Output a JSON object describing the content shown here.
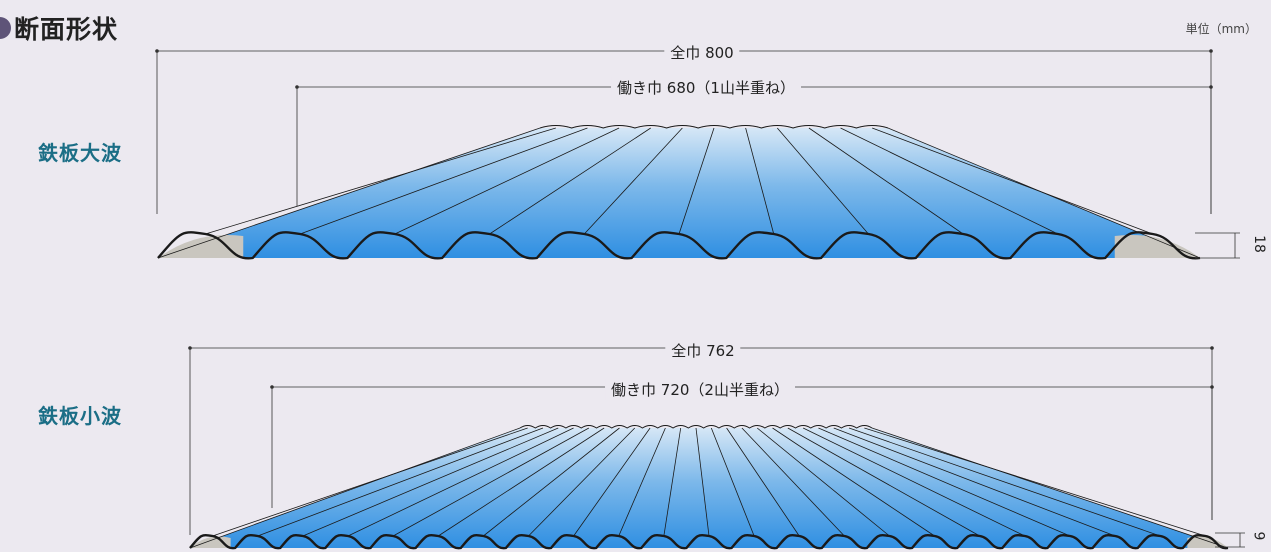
{
  "heading": {
    "title": "断面形状",
    "unit": "単位（mm）"
  },
  "colors": {
    "background": "#ece9f0",
    "sheet_top": "#d6e7f6",
    "sheet_mid": "#7cb8ea",
    "sheet_bottom": "#2f8fe2",
    "underside": "#c9c6bf",
    "outline": "#1a1a1a",
    "label": "#1b6e86"
  },
  "profiles": [
    {
      "label": "鉄板大波",
      "total_width": "全巾 800",
      "working_width": "働き巾 680（1山半重ね）",
      "height_dim": "18",
      "wave_count": 11
    },
    {
      "label": "鉄板小波",
      "total_width": "全巾 762",
      "working_width": "働き巾 720（2山半重ね）",
      "height_dim": "9",
      "wave_count": 23
    }
  ]
}
